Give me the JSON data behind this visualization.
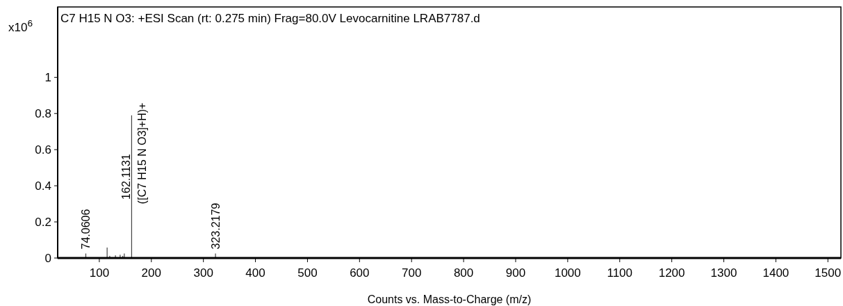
{
  "chart_data": {
    "type": "bar",
    "title": "C7 H15 N O3: +ESI Scan (rt: 0.275 min) Frag=80.0V Levocarnitine LRAB7787.d",
    "xlabel": "Counts vs. Mass-to-Charge (m/z)",
    "ylabel": "x10$^{6}$",
    "x": [
      74.0606,
      115,
      120,
      131,
      140,
      145,
      148,
      162.1131,
      323.2179
    ],
    "values": [
      0.025,
      0.058,
      0.012,
      0.015,
      0.018,
      0.012,
      0.025,
      0.79,
      0.025
    ],
    "color": "#444444",
    "annotations": [
      {
        "text": "74.0606",
        "x": 74.0606,
        "y": 0.025
      },
      {
        "text": "162.1131",
        "x": 162.1131,
        "y": 0.45
      },
      {
        "text": "([C7 H15 N O3]+H)+",
        "x": 162.1131,
        "y": 0.79
      },
      {
        "text": "323.2179",
        "x": 323.2179,
        "y": 0.025
      }
    ],
    "xlim": [
      20,
      1525
    ],
    "xticks": [
      100,
      200,
      300,
      400,
      500,
      600,
      700,
      800,
      900,
      1000,
      1100,
      1200,
      1300,
      1400,
      1500
    ],
    "ylim": [
      0,
      1.39
    ],
    "yticks": [
      0,
      0.2,
      0.4,
      0.6,
      0.8,
      1
    ],
    "grid": false
  }
}
